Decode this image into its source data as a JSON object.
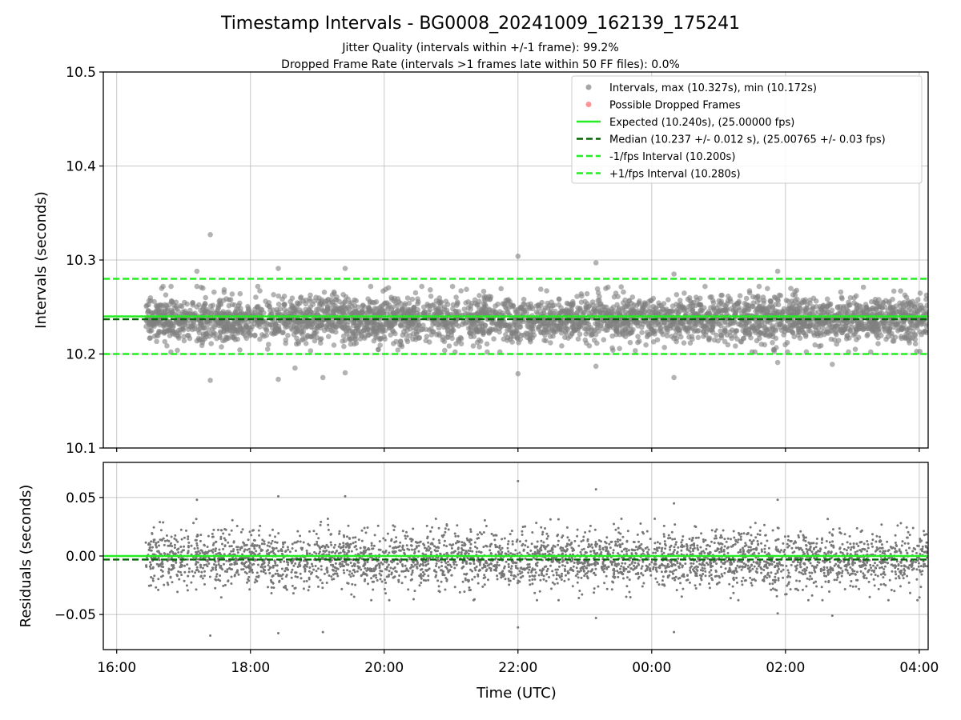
{
  "figure": {
    "title": "Timestamp Intervals - BG0008_20241009_162139_175241",
    "subtitle_line1": "Jitter Quality (intervals within +/-1 frame): 99.2%",
    "subtitle_line2": "Dropped Frame Rate (intervals >1 frames late within 50 FF files): 0.0%",
    "xlabel": "Time (UTC)"
  },
  "chart_data": [
    {
      "type": "scatter",
      "panel": "top",
      "ylabel": "Intervals (seconds)",
      "xlim": [
        "15:48",
        "04:08"
      ],
      "ylim": [
        10.1,
        10.5
      ],
      "x_ticks": [
        "16:00",
        "18:00",
        "20:00",
        "22:00",
        "00:00",
        "02:00",
        "04:00"
      ],
      "y_ticks": [
        10.1,
        10.2,
        10.3,
        10.4,
        10.5
      ],
      "y_tick_labels": [
        "10.1",
        "10.2",
        "10.3",
        "10.4",
        "10.5"
      ],
      "grid": true,
      "legend_position": "top-right",
      "series": [
        {
          "name": "Intervals, max (10.327s), min (10.172s)",
          "kind": "scatter",
          "color": "#808080",
          "x_range": [
            "16:26",
            "04:08"
          ],
          "center": 10.237,
          "spread": 0.012,
          "notable_points": [
            {
              "x": "17:24",
              "y": 10.327
            },
            {
              "x": "22:00",
              "y": 10.304
            },
            {
              "x": "23:10",
              "y": 10.297
            },
            {
              "x": "18:25",
              "y": 10.291
            },
            {
              "x": "19:25",
              "y": 10.291
            },
            {
              "x": "17:12",
              "y": 10.288
            },
            {
              "x": "01:53",
              "y": 10.288
            },
            {
              "x": "00:20",
              "y": 10.285
            },
            {
              "x": "17:24",
              "y": 10.172
            },
            {
              "x": "18:25",
              "y": 10.173
            },
            {
              "x": "19:05",
              "y": 10.175
            },
            {
              "x": "00:20",
              "y": 10.175
            },
            {
              "x": "18:40",
              "y": 10.185
            },
            {
              "x": "19:25",
              "y": 10.18
            },
            {
              "x": "22:00",
              "y": 10.179
            },
            {
              "x": "23:10",
              "y": 10.187
            },
            {
              "x": "01:53",
              "y": 10.191
            },
            {
              "x": "02:42",
              "y": 10.189
            }
          ]
        },
        {
          "name": "Possible Dropped Frames",
          "kind": "scatter",
          "color": "#ff6666",
          "points": []
        },
        {
          "name": "Expected (10.240s), (25.00000 fps)",
          "kind": "line",
          "style": "solid",
          "color": "#22ee22",
          "y": 10.24
        },
        {
          "name": "Median (10.237 +/- 0.012 s), (25.00765 +/- 0.03 fps)",
          "kind": "line",
          "style": "dashed",
          "color": "#006400",
          "y": 10.237
        },
        {
          "name": "-1/fps Interval (10.200s)",
          "kind": "line",
          "style": "dashed",
          "color": "#22ee22",
          "y": 10.2
        },
        {
          "name": "+1/fps Interval (10.280s)",
          "kind": "line",
          "style": "dashed",
          "color": "#22ee22",
          "y": 10.28
        }
      ]
    },
    {
      "type": "scatter",
      "panel": "bottom",
      "ylabel": "Residuals (seconds)",
      "xlim": [
        "15:48",
        "04:08"
      ],
      "ylim": [
        -0.08,
        0.08
      ],
      "x_ticks": [
        "16:00",
        "18:00",
        "20:00",
        "22:00",
        "00:00",
        "02:00",
        "04:00"
      ],
      "x_tick_labels": [
        "16:00",
        "18:00",
        "20:00",
        "22:00",
        "00:00",
        "02:00",
        "04:00"
      ],
      "y_ticks": [
        -0.05,
        0.0,
        0.05
      ],
      "y_tick_labels": [
        "−0.05",
        "0.00",
        "0.05"
      ],
      "grid": true,
      "series": [
        {
          "kind": "scatter",
          "color": "#777777",
          "x_range": [
            "16:26",
            "04:08"
          ],
          "center": -0.003,
          "spread": 0.012,
          "notable_points": [
            {
              "x": "22:00",
              "y": 0.064
            },
            {
              "x": "23:10",
              "y": 0.057
            },
            {
              "x": "18:25",
              "y": 0.051
            },
            {
              "x": "19:25",
              "y": 0.051
            },
            {
              "x": "17:12",
              "y": 0.048
            },
            {
              "x": "01:53",
              "y": 0.048
            },
            {
              "x": "00:20",
              "y": 0.045
            },
            {
              "x": "17:24",
              "y": -0.068
            },
            {
              "x": "18:25",
              "y": -0.066
            },
            {
              "x": "19:05",
              "y": -0.065
            },
            {
              "x": "00:20",
              "y": -0.065
            },
            {
              "x": "22:00",
              "y": -0.061
            },
            {
              "x": "23:10",
              "y": -0.053
            },
            {
              "x": "01:53",
              "y": -0.049
            },
            {
              "x": "02:42",
              "y": -0.051
            }
          ]
        },
        {
          "kind": "line",
          "style": "solid",
          "color": "#22ee22",
          "y": 0.0
        },
        {
          "kind": "line",
          "style": "dashed",
          "color": "#006400",
          "y": -0.003
        }
      ]
    }
  ]
}
